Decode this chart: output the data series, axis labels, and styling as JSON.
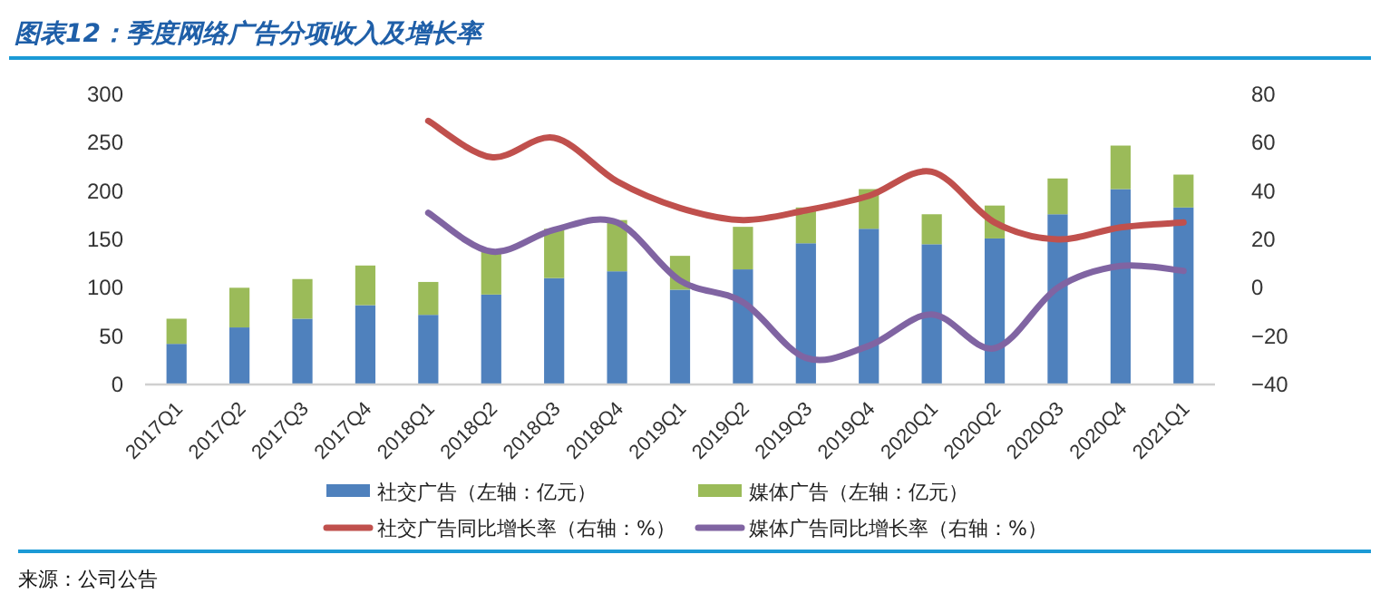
{
  "chart_data": {
    "type": "bar",
    "title": "图表12：季度网络广告分项收入及增长率",
    "categories": [
      "2017Q1",
      "2017Q2",
      "2017Q3",
      "2017Q4",
      "2018Q1",
      "2018Q2",
      "2018Q3",
      "2018Q4",
      "2019Q1",
      "2019Q2",
      "2019Q3",
      "2019Q4",
      "2020Q1",
      "2020Q2",
      "2020Q3",
      "2020Q4",
      "2021Q1"
    ],
    "series": [
      {
        "name": "社交广告（左轴：亿元）",
        "color": "#4f81bd",
        "values": [
          42,
          59,
          68,
          82,
          72,
          93,
          110,
          117,
          98,
          119,
          146,
          161,
          145,
          151,
          176,
          202,
          183
        ]
      },
      {
        "name": "媒体广告（左轴：亿元）",
        "color": "#9bbb59",
        "values": [
          26,
          41,
          41,
          41,
          34,
          44,
          51,
          53,
          35,
          44,
          37,
          41,
          31,
          34,
          37,
          45,
          34
        ]
      },
      {
        "name": "社交广告同比增长率（右轴：%）",
        "color": "#c0504d",
        "type": "line",
        "axis": "y2",
        "values": [
          null,
          null,
          null,
          null,
          69,
          54,
          62,
          44,
          33,
          28,
          32,
          38,
          48,
          27,
          20,
          25,
          27
        ]
      },
      {
        "name": "媒体广告同比增长率（右轴：%）",
        "color": "#8064a2",
        "type": "line",
        "axis": "y2",
        "values": [
          null,
          null,
          null,
          null,
          31,
          15,
          24,
          27,
          3,
          -6,
          -29,
          -24,
          -11,
          -25,
          0,
          9,
          7
        ]
      }
    ],
    "stacked": true,
    "ylim": [
      0,
      300
    ],
    "yticks": [
      0,
      50,
      100,
      150,
      200,
      250,
      300
    ],
    "y2lim": [
      -40,
      80
    ],
    "y2ticks": [
      -40,
      -20,
      0,
      20,
      40,
      60,
      80
    ],
    "grid": false,
    "legend": "bottom",
    "annotations": [
      "来源：公司公告"
    ]
  }
}
